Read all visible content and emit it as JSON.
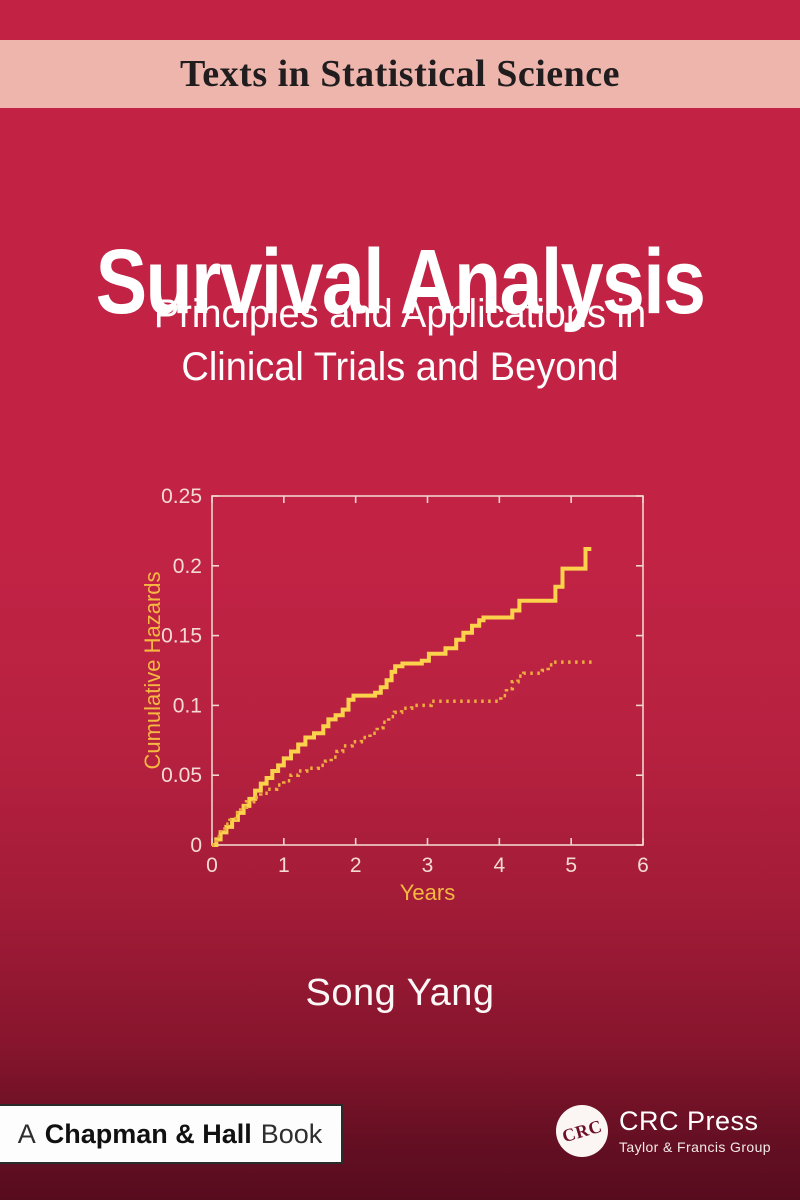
{
  "series_banner": {
    "label": "Texts in Statistical Science"
  },
  "title_block": {
    "title": "Survival Analysis",
    "subtitle_line1": "Principles and Applications in",
    "subtitle_line2": "Clinical Trials and Beyond"
  },
  "author": {
    "name": "Song Yang"
  },
  "publisher": {
    "chapman": {
      "prefix": "A",
      "name": "Chapman & Hall",
      "suffix": "Book"
    },
    "crc": {
      "circle_label": "CRC",
      "name": "CRC Press",
      "group": "Taylor & Francis Group"
    }
  },
  "colors": {
    "crimson": "#c22345",
    "pink_band": "#edb5ac",
    "dark_maroon": "#570c1e",
    "axis": "#f0d4ce",
    "tick_label": "#f4dad4",
    "axis_title_yellow": "#f5b841",
    "solid_curve": "#fcd24d",
    "dotted_curve": "#eeab3e"
  },
  "chart_data": {
    "type": "line",
    "subtype": "step",
    "title": "",
    "xlabel": "Years",
    "ylabel": "Cumulative Hazards",
    "xlim": [
      0,
      6
    ],
    "ylim": [
      0,
      0.25
    ],
    "xticks": [
      0,
      1,
      2,
      3,
      4,
      5,
      6
    ],
    "xtick_labels": [
      "0",
      "1",
      "2",
      "3",
      "4",
      "5",
      "6"
    ],
    "yticks": [
      0,
      0.05,
      0.1,
      0.15,
      0.2,
      0.25
    ],
    "ytick_labels": [
      "0",
      "0.05",
      "0.1",
      "0.15",
      "0.2",
      "0.25"
    ],
    "grid": false,
    "legend": "none",
    "box": true,
    "series": [
      {
        "name": "group-1-solid",
        "style": "solid",
        "color": "#fcd24d",
        "points": [
          [
            0,
            0
          ],
          [
            0.06,
            0.004
          ],
          [
            0.12,
            0.009
          ],
          [
            0.2,
            0.013
          ],
          [
            0.28,
            0.018
          ],
          [
            0.36,
            0.023
          ],
          [
            0.44,
            0.028
          ],
          [
            0.52,
            0.033
          ],
          [
            0.6,
            0.039
          ],
          [
            0.68,
            0.044
          ],
          [
            0.76,
            0.048
          ],
          [
            0.84,
            0.053
          ],
          [
            0.92,
            0.057
          ],
          [
            1.0,
            0.062
          ],
          [
            1.1,
            0.067
          ],
          [
            1.2,
            0.072
          ],
          [
            1.3,
            0.077
          ],
          [
            1.42,
            0.08
          ],
          [
            1.55,
            0.085
          ],
          [
            1.62,
            0.09
          ],
          [
            1.72,
            0.093
          ],
          [
            1.82,
            0.097
          ],
          [
            1.9,
            0.104
          ],
          [
            1.97,
            0.107
          ],
          [
            2.27,
            0.109
          ],
          [
            2.35,
            0.113
          ],
          [
            2.43,
            0.118
          ],
          [
            2.5,
            0.124
          ],
          [
            2.55,
            0.128
          ],
          [
            2.65,
            0.13
          ],
          [
            2.92,
            0.132
          ],
          [
            3.02,
            0.137
          ],
          [
            3.25,
            0.141
          ],
          [
            3.4,
            0.147
          ],
          [
            3.5,
            0.152
          ],
          [
            3.62,
            0.157
          ],
          [
            3.72,
            0.161
          ],
          [
            3.78,
            0.163
          ],
          [
            4.18,
            0.168
          ],
          [
            4.28,
            0.175
          ],
          [
            4.78,
            0.185
          ],
          [
            4.88,
            0.198
          ],
          [
            5.2,
            0.212
          ],
          [
            5.28,
            0.212
          ]
        ]
      },
      {
        "name": "group-2-dotted",
        "style": "dotted",
        "color": "#eeab3e",
        "points": [
          [
            0,
            0
          ],
          [
            0.06,
            0.006
          ],
          [
            0.12,
            0.011
          ],
          [
            0.18,
            0.015
          ],
          [
            0.25,
            0.019
          ],
          [
            0.33,
            0.023
          ],
          [
            0.4,
            0.027
          ],
          [
            0.48,
            0.031
          ],
          [
            0.58,
            0.034
          ],
          [
            0.68,
            0.037
          ],
          [
            0.78,
            0.04
          ],
          [
            0.9,
            0.043
          ],
          [
            1.0,
            0.046
          ],
          [
            1.1,
            0.05
          ],
          [
            1.2,
            0.053
          ],
          [
            1.32,
            0.055
          ],
          [
            1.48,
            0.057
          ],
          [
            1.58,
            0.06
          ],
          [
            1.66,
            0.063
          ],
          [
            1.74,
            0.067
          ],
          [
            1.82,
            0.071
          ],
          [
            1.95,
            0.074
          ],
          [
            2.08,
            0.077
          ],
          [
            2.2,
            0.08
          ],
          [
            2.3,
            0.084
          ],
          [
            2.38,
            0.088
          ],
          [
            2.46,
            0.092
          ],
          [
            2.54,
            0.095
          ],
          [
            2.64,
            0.098
          ],
          [
            2.78,
            0.1
          ],
          [
            3.05,
            0.103
          ],
          [
            4.02,
            0.107
          ],
          [
            4.1,
            0.112
          ],
          [
            4.18,
            0.117
          ],
          [
            4.26,
            0.121
          ],
          [
            4.34,
            0.123
          ],
          [
            4.6,
            0.125
          ],
          [
            4.68,
            0.129
          ],
          [
            4.76,
            0.131
          ],
          [
            5.3,
            0.131
          ]
        ]
      }
    ]
  }
}
